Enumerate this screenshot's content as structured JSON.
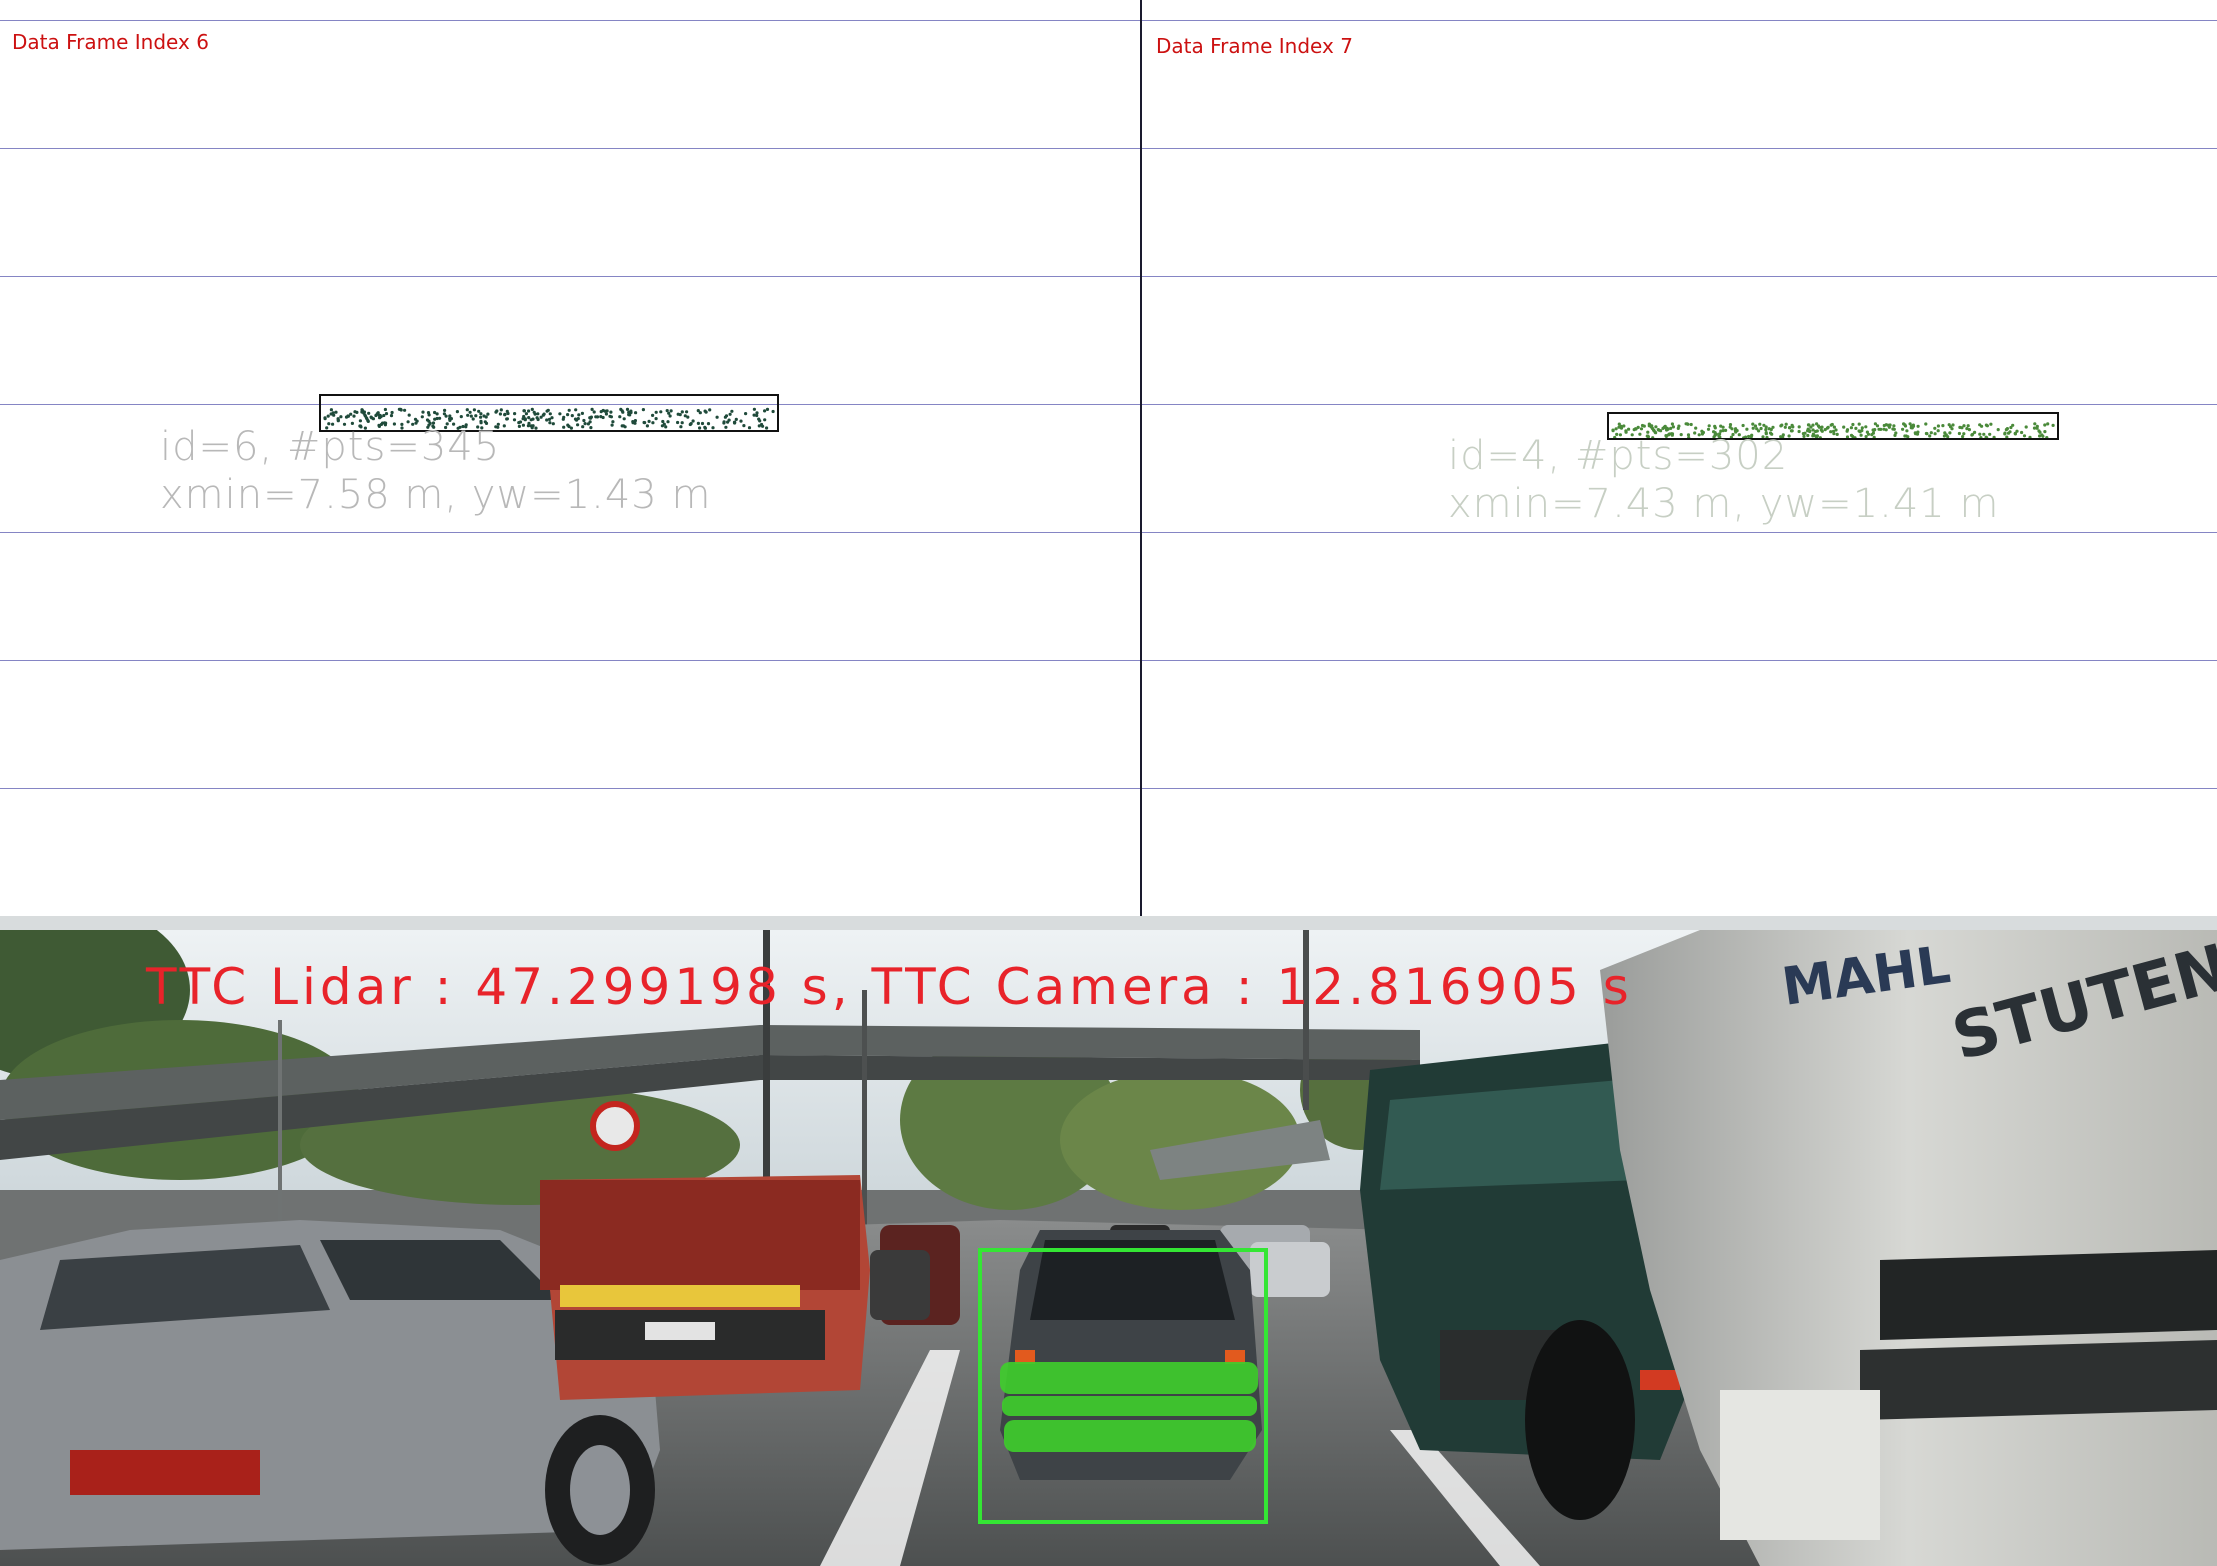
{
  "left_panel": {
    "frame_label": "Data Frame Index 6",
    "info_id": "id=6, #pts=345",
    "info_geom": "xmin=7.58 m, yw=1.43 m",
    "point_color": "#1f4a3a"
  },
  "right_panel": {
    "frame_label": "Data Frame Index 7",
    "info_id": "id=4, #pts=302",
    "info_geom": "xmin=7.43 m, yw=1.41 m",
    "point_color": "#4a8a3a"
  },
  "camera": {
    "ttc_text": "TTC Lidar : 47.299198 s, TTC Camera : 12.816905 s",
    "roi_color": "#34e634",
    "lidar_overlay_color": "#3fcf2c",
    "scene_labels": {
      "truck_brand": "MAHL",
      "tanker_brand": "STUTEN"
    }
  },
  "colors": {
    "frame_label": "#cc1111",
    "gridline": "#8585c4",
    "ttc_text": "#e8232a"
  }
}
